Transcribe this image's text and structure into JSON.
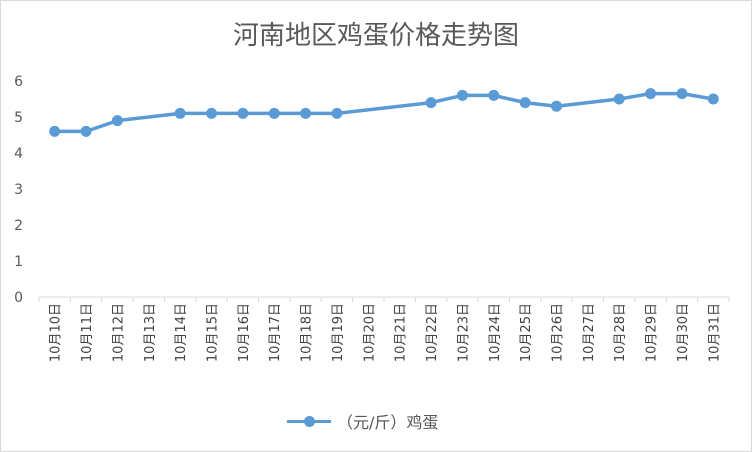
{
  "chart_data": {
    "type": "line",
    "title": "河南地区鸡蛋价格走势图",
    "xlabel": "",
    "ylabel": "",
    "ylim": [
      0,
      6
    ],
    "yticks": [
      "0",
      "1",
      "2",
      "3",
      "4",
      "5",
      "6"
    ],
    "grid": false,
    "legend_position": "bottom",
    "categories": [
      "10月10日",
      "10月11日",
      "10月12日",
      "10月13日",
      "10月14日",
      "10月15日",
      "10月16日",
      "10月17日",
      "10月18日",
      "10月19日",
      "10月20日",
      "10月21日",
      "10月22日",
      "10月23日",
      "10月24日",
      "10月25日",
      "10月26日",
      "10月27日",
      "10月28日",
      "10月29日",
      "10月30日",
      "10月31日"
    ],
    "series": [
      {
        "name": "（元/斤）鸡蛋",
        "color": "#5b9bd5",
        "values": [
          4.6,
          4.6,
          4.9,
          null,
          5.1,
          5.1,
          5.1,
          5.1,
          5.1,
          5.1,
          null,
          null,
          5.4,
          5.6,
          5.6,
          5.4,
          5.3,
          null,
          5.5,
          5.65,
          5.65,
          5.5
        ]
      }
    ]
  }
}
